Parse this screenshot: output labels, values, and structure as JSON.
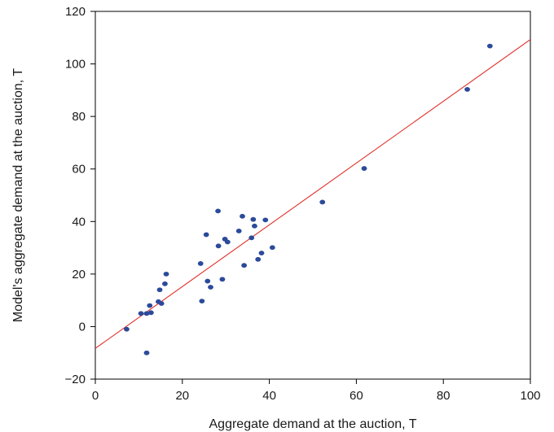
{
  "chart_data": {
    "type": "scatter",
    "xlabel": "Aggregate demand at the auction, T",
    "ylabel": "Model's aggregate demand at the auction, T",
    "xlim": [
      0,
      100
    ],
    "ylim": [
      -20,
      120
    ],
    "xticks": [
      0,
      20,
      40,
      60,
      80,
      100
    ],
    "yticks": [
      -20,
      0,
      20,
      40,
      60,
      80,
      100,
      120
    ],
    "tick_labels_x": [
      "0",
      "20",
      "40",
      "60",
      "80",
      "100"
    ],
    "tick_labels_y": [
      "−20",
      "0",
      "20",
      "40",
      "60",
      "80",
      "100",
      "120"
    ],
    "grid": false,
    "point_color": "#2b4a9a",
    "line_color": "#e0302a",
    "points": [
      [
        7.2,
        -1
      ],
      [
        11.8,
        -10
      ],
      [
        10.5,
        5
      ],
      [
        11.8,
        5
      ],
      [
        12.5,
        8
      ],
      [
        12.8,
        5.3
      ],
      [
        14.5,
        9.5
      ],
      [
        15.2,
        8.8
      ],
      [
        14.8,
        14
      ],
      [
        16.0,
        16.3
      ],
      [
        16.3,
        20
      ],
      [
        24.2,
        24
      ],
      [
        24.5,
        9.7
      ],
      [
        25.8,
        17.3
      ],
      [
        25.5,
        35
      ],
      [
        26.5,
        15
      ],
      [
        28.2,
        44
      ],
      [
        28.3,
        30.7
      ],
      [
        29.2,
        18
      ],
      [
        29.8,
        33.3
      ],
      [
        30.4,
        32.2
      ],
      [
        33.0,
        36.4
      ],
      [
        33.8,
        42
      ],
      [
        34.2,
        23.3
      ],
      [
        35.9,
        33.8
      ],
      [
        36.3,
        40.8
      ],
      [
        36.6,
        38.3
      ],
      [
        37.4,
        25.6
      ],
      [
        38.2,
        28
      ],
      [
        39.1,
        40.6
      ],
      [
        40.7,
        30.1
      ],
      [
        52.2,
        47.4
      ],
      [
        61.8,
        60.2
      ],
      [
        85.5,
        90.3
      ],
      [
        90.7,
        106.8
      ]
    ],
    "fit_line": {
      "x0": 0,
      "y0": -8.3,
      "x1": 100,
      "y1": 109.3
    }
  }
}
